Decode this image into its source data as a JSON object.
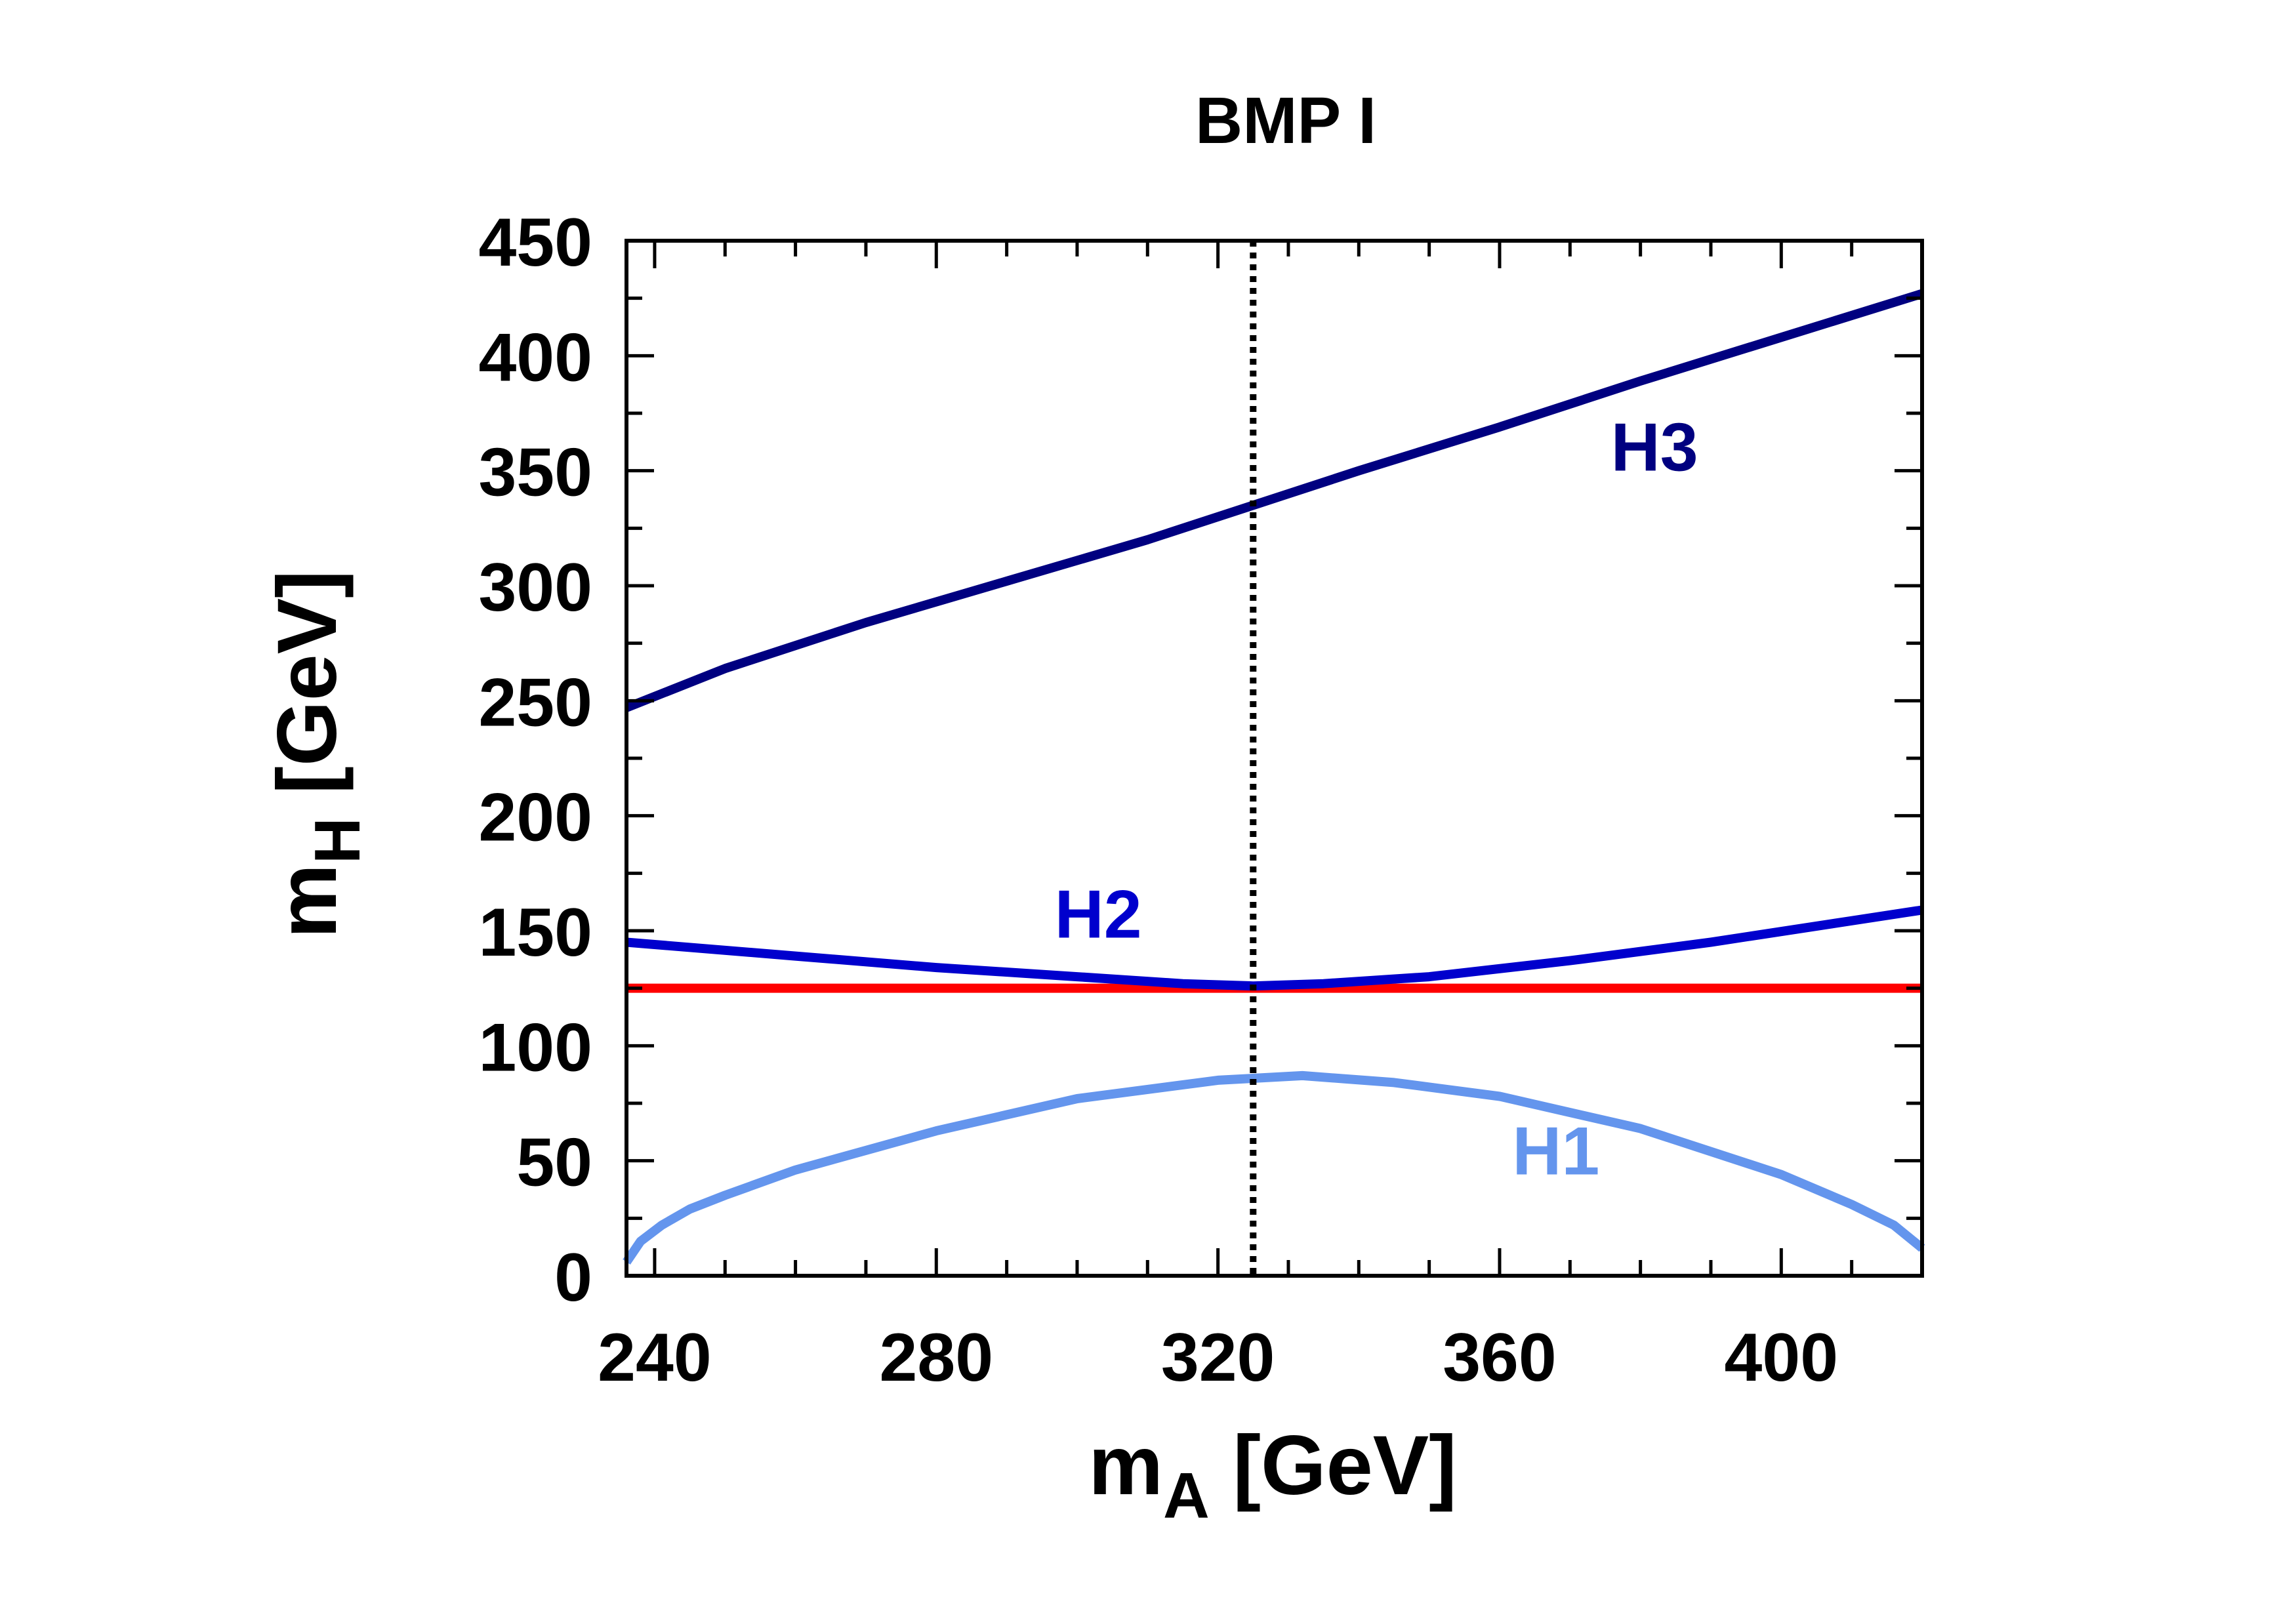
{
  "chart_data": {
    "type": "line",
    "title": "BMP I",
    "xlabel": {
      "main": "m",
      "sub": "A",
      "unit": "[GeV]"
    },
    "ylabel": {
      "main": "m",
      "sub": "H",
      "unit": "[GeV]"
    },
    "xlim": [
      236,
      420
    ],
    "ylim": [
      0,
      450
    ],
    "xticks": [
      240,
      280,
      320,
      360,
      400
    ],
    "yticks": [
      0,
      50,
      100,
      150,
      200,
      250,
      300,
      350,
      400,
      450
    ],
    "xminor_step": 10,
    "yminor_step": 25,
    "vline": {
      "x": 325,
      "style": "dotted",
      "color": "#000000"
    },
    "hline": {
      "y": 125,
      "color": "#ff0000"
    },
    "series": [
      {
        "name": "H3",
        "color": "#000080",
        "x": [
          236,
          250,
          270,
          290,
          310,
          325,
          340,
          360,
          380,
          400,
          420
        ],
        "y": [
          247,
          264,
          284,
          302,
          320,
          335,
          350,
          369,
          389,
          408,
          427
        ],
        "label_pos": [
          382,
          350
        ]
      },
      {
        "name": "H2",
        "color": "#0000cd",
        "x": [
          236,
          260,
          280,
          300,
          315,
          325,
          335,
          350,
          370,
          390,
          420
        ],
        "y": [
          145,
          139,
          134,
          130,
          127,
          126,
          127,
          130,
          137,
          145,
          159
        ],
        "label_pos": [
          303,
          147
        ]
      },
      {
        "name": "H1",
        "color": "#6495ed",
        "x": [
          236,
          238,
          241,
          245,
          250,
          260,
          280,
          300,
          320,
          332,
          345,
          360,
          380,
          400,
          410,
          416,
          420
        ],
        "y": [
          6,
          15,
          22,
          29,
          35,
          46,
          63,
          77,
          85,
          87,
          84,
          78,
          64,
          44,
          31,
          22,
          12
        ],
        "label_pos": [
          368,
          44
        ]
      }
    ]
  }
}
